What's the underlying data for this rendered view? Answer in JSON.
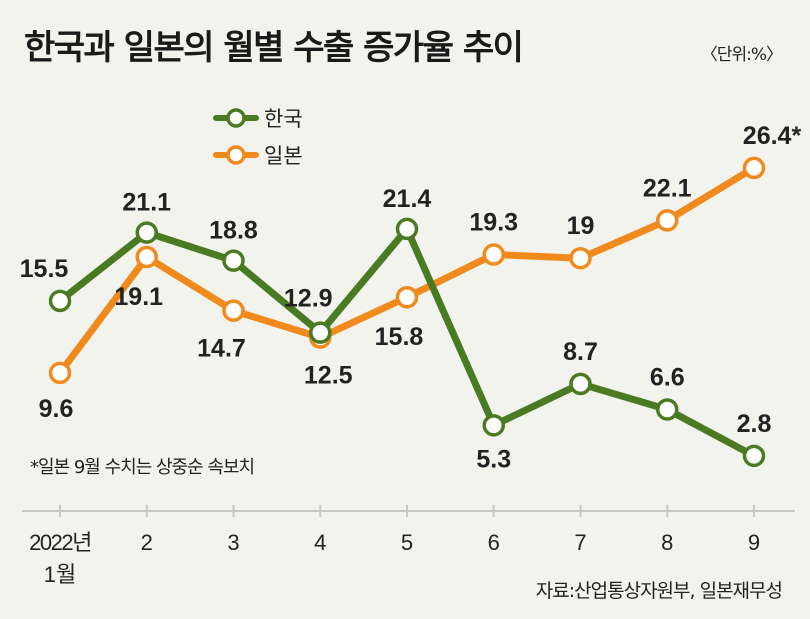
{
  "chart_data": {
    "type": "line",
    "title": "한국과 일본의 월별 수출 증가율 추이",
    "unit_label": "〈단위:%〉",
    "categories": [
      "2022년",
      "2",
      "3",
      "4",
      "5",
      "6",
      "7",
      "8",
      "9"
    ],
    "first_category_sub": "1월",
    "series": [
      {
        "name": "한국",
        "color": "#4a7a22",
        "values": [
          15.5,
          21.1,
          18.8,
          12.9,
          21.4,
          5.3,
          8.7,
          6.6,
          2.8
        ],
        "labels": [
          "15.5",
          "21.1",
          "18.8",
          "12.9",
          "21.4",
          "5.3",
          "8.7",
          "6.6",
          "2.8"
        ]
      },
      {
        "name": "일본",
        "color": "#f08a1c",
        "values": [
          9.6,
          19.1,
          14.7,
          12.5,
          15.8,
          19.3,
          19,
          22.1,
          26.4
        ],
        "labels": [
          "9.6",
          "19.1",
          "14.7",
          "12.5",
          "15.8",
          "19.3",
          "19",
          "22.1",
          "26.4*"
        ]
      }
    ],
    "xlabel": "",
    "ylabel": "",
    "grid": false,
    "legend": "top-left"
  },
  "note": "*일본 9월 수치는 상중순 속보치",
  "source": "자료:산업통상자원부, 일본재무성"
}
